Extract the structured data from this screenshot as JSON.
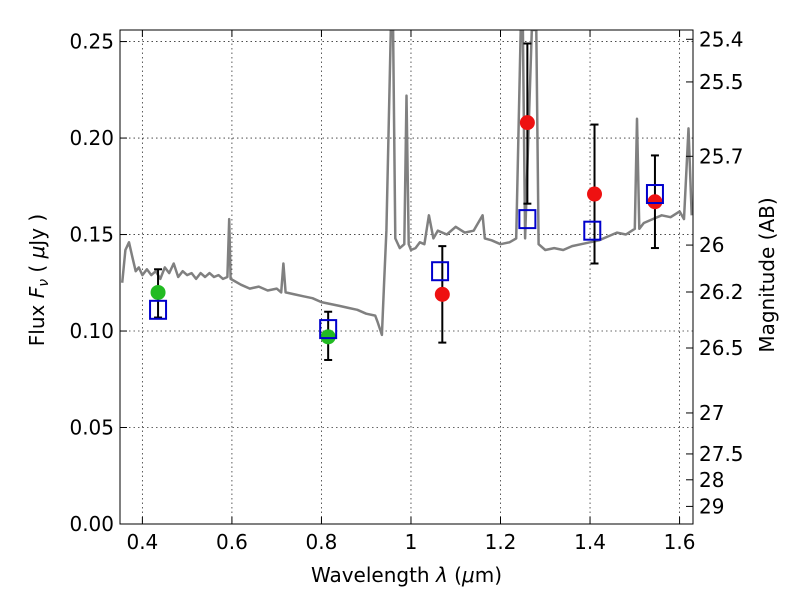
{
  "chart_data": {
    "type": "scatter",
    "title": "",
    "xlabel": {
      "prefix": "Wavelength ",
      "sym": "λ",
      "open": " (",
      "mu": "μ",
      "unit": "m)"
    },
    "ylabel": {
      "prefix": "Flux ",
      "sym": "F",
      "sub": "ν",
      "open": " ( ",
      "mu": "μ",
      "unit": "Jy )"
    },
    "y2label": "Magnitude (AB)",
    "xlim": [
      0.35,
      1.63
    ],
    "ylim": [
      0.0,
      0.256
    ],
    "xticks": [
      0.4,
      0.6,
      0.8,
      1.0,
      1.2,
      1.4,
      1.6
    ],
    "xtick_labels": [
      "0.4",
      "0.6",
      "0.8",
      "1",
      "1.2",
      "1.4",
      "1.6"
    ],
    "yticks": [
      0.0,
      0.05,
      0.1,
      0.15,
      0.2,
      0.25
    ],
    "ytick_labels": [
      "0.00",
      "0.05",
      "0.10",
      "0.15",
      "0.20",
      "0.25"
    ],
    "y2ticks": [
      {
        "mag": 25.4,
        "label": "25.4"
      },
      {
        "mag": 25.5,
        "label": "25.5"
      },
      {
        "mag": 25.7,
        "label": "25.7"
      },
      {
        "mag": 26,
        "label": "26"
      },
      {
        "mag": 26.2,
        "label": "26.2"
      },
      {
        "mag": 26.5,
        "label": "26.5"
      },
      {
        "mag": 27,
        "label": "27"
      },
      {
        "mag": 27.5,
        "label": "27.5"
      },
      {
        "mag": 28,
        "label": "28"
      },
      {
        "mag": 29,
        "label": "29"
      }
    ],
    "grid": true,
    "colors": {
      "template": "#808080",
      "model_points": "#0000cc",
      "green_points": "#22bb22",
      "red_points": "#ee1111",
      "errorbars": "#000000"
    },
    "template_spectrum": [
      [
        0.355,
        0.125
      ],
      [
        0.362,
        0.142
      ],
      [
        0.37,
        0.146
      ],
      [
        0.378,
        0.138
      ],
      [
        0.385,
        0.131
      ],
      [
        0.392,
        0.133
      ],
      [
        0.4,
        0.129
      ],
      [
        0.41,
        0.132
      ],
      [
        0.42,
        0.129
      ],
      [
        0.43,
        0.131
      ],
      [
        0.44,
        0.127
      ],
      [
        0.45,
        0.133
      ],
      [
        0.46,
        0.13
      ],
      [
        0.47,
        0.135
      ],
      [
        0.48,
        0.128
      ],
      [
        0.49,
        0.131
      ],
      [
        0.5,
        0.129
      ],
      [
        0.51,
        0.13
      ],
      [
        0.52,
        0.127
      ],
      [
        0.53,
        0.13
      ],
      [
        0.54,
        0.128
      ],
      [
        0.55,
        0.13
      ],
      [
        0.56,
        0.128
      ],
      [
        0.57,
        0.129
      ],
      [
        0.58,
        0.127
      ],
      [
        0.59,
        0.128
      ],
      [
        0.594,
        0.158
      ],
      [
        0.597,
        0.127
      ],
      [
        0.605,
        0.126
      ],
      [
        0.62,
        0.124
      ],
      [
        0.64,
        0.122
      ],
      [
        0.66,
        0.123
      ],
      [
        0.68,
        0.121
      ],
      [
        0.7,
        0.122
      ],
      [
        0.71,
        0.12
      ],
      [
        0.715,
        0.135
      ],
      [
        0.72,
        0.12
      ],
      [
        0.74,
        0.119
      ],
      [
        0.76,
        0.118
      ],
      [
        0.78,
        0.117
      ],
      [
        0.8,
        0.115
      ],
      [
        0.82,
        0.114
      ],
      [
        0.84,
        0.113
      ],
      [
        0.86,
        0.112
      ],
      [
        0.88,
        0.111
      ],
      [
        0.9,
        0.109
      ],
      [
        0.92,
        0.108
      ],
      [
        0.925,
        0.105
      ],
      [
        0.935,
        0.098
      ],
      [
        0.94,
        0.125
      ],
      [
        0.945,
        0.152
      ],
      [
        0.955,
        0.256
      ],
      [
        0.96,
        0.256
      ],
      [
        0.965,
        0.148
      ],
      [
        0.975,
        0.143
      ],
      [
        0.985,
        0.145
      ],
      [
        0.99,
        0.222
      ],
      [
        0.995,
        0.145
      ],
      [
        1.0,
        0.142
      ],
      [
        1.01,
        0.143
      ],
      [
        1.02,
        0.146
      ],
      [
        1.03,
        0.145
      ],
      [
        1.04,
        0.16
      ],
      [
        1.05,
        0.148
      ],
      [
        1.06,
        0.152
      ],
      [
        1.08,
        0.15
      ],
      [
        1.1,
        0.154
      ],
      [
        1.12,
        0.151
      ],
      [
        1.14,
        0.152
      ],
      [
        1.16,
        0.16
      ],
      [
        1.165,
        0.148
      ],
      [
        1.18,
        0.147
      ],
      [
        1.2,
        0.145
      ],
      [
        1.22,
        0.146
      ],
      [
        1.235,
        0.148
      ],
      [
        1.245,
        0.256
      ],
      [
        1.25,
        0.256
      ],
      [
        1.255,
        0.148
      ],
      [
        1.27,
        0.256
      ],
      [
        1.28,
        0.256
      ],
      [
        1.285,
        0.145
      ],
      [
        1.3,
        0.142
      ],
      [
        1.32,
        0.143
      ],
      [
        1.34,
        0.142
      ],
      [
        1.36,
        0.144
      ],
      [
        1.38,
        0.145
      ],
      [
        1.4,
        0.146
      ],
      [
        1.42,
        0.147
      ],
      [
        1.44,
        0.149
      ],
      [
        1.46,
        0.151
      ],
      [
        1.48,
        0.15
      ],
      [
        1.5,
        0.153
      ],
      [
        1.505,
        0.21
      ],
      [
        1.51,
        0.153
      ],
      [
        1.52,
        0.156
      ],
      [
        1.54,
        0.158
      ],
      [
        1.56,
        0.16
      ],
      [
        1.58,
        0.159
      ],
      [
        1.6,
        0.162
      ],
      [
        1.61,
        0.158
      ],
      [
        1.62,
        0.205
      ],
      [
        1.627,
        0.16
      ]
    ],
    "series": [
      {
        "marker": "open-square",
        "color": "#0000cc",
        "points": [
          [
            0.435,
            0.111
          ],
          [
            0.815,
            0.101
          ],
          [
            1.065,
            0.131
          ],
          [
            1.26,
            0.158
          ],
          [
            1.405,
            0.152
          ],
          [
            1.545,
            0.171
          ]
        ]
      },
      {
        "marker": "filled-circle",
        "color": "#22bb22",
        "points": [
          {
            "x": 0.435,
            "y": 0.12,
            "err_low": 0.107,
            "err_high": 0.132
          },
          {
            "x": 0.815,
            "y": 0.097,
            "err_low": 0.085,
            "err_high": 0.11
          }
        ]
      },
      {
        "marker": "filled-circle",
        "color": "#ee1111",
        "points": [
          {
            "x": 1.07,
            "y": 0.119,
            "err_low": 0.094,
            "err_high": 0.144
          },
          {
            "x": 1.26,
            "y": 0.208,
            "err_low": 0.166,
            "err_high": 0.249
          },
          {
            "x": 1.41,
            "y": 0.171,
            "err_low": 0.135,
            "err_high": 0.207
          },
          {
            "x": 1.545,
            "y": 0.167,
            "err_low": 0.143,
            "err_high": 0.191
          }
        ]
      }
    ]
  }
}
